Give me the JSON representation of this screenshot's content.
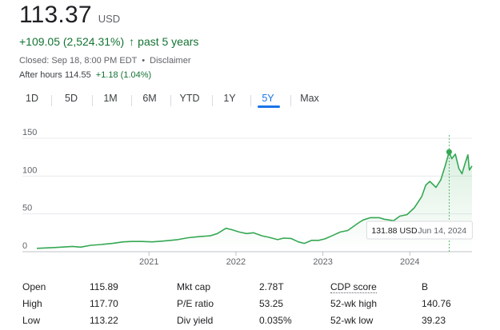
{
  "quote": {
    "price": "113.37",
    "currency": "USD",
    "change": "+109.05 (2,524.31%)",
    "change_arrow": "↑",
    "change_period": "past 5 years",
    "closed_text": "Closed: Sep 18, 8:00 PM EDT",
    "separator": "•",
    "disclaimer": "Disclaimer",
    "after_hours_label": "After hours",
    "after_hours_price": "114.55",
    "after_hours_change": "+1.18 (1.04%)"
  },
  "range_tabs": {
    "items": [
      "1D",
      "5D",
      "1M",
      "6M",
      "YTD",
      "1Y",
      "5Y",
      "Max"
    ],
    "active_index": 6
  },
  "colors": {
    "line": "#34a853",
    "fill": "#e6f4ea",
    "grid": "#e8eaed",
    "accent": "#1a73e8",
    "positive": "#137333"
  },
  "chart_data": {
    "type": "area",
    "title": "",
    "xlabel": "",
    "ylabel": "",
    "ylim": [
      0,
      150
    ],
    "yticks": [
      0,
      50,
      100,
      150
    ],
    "xtick_labels": [
      "2021",
      "2022",
      "2023",
      "2024"
    ],
    "grid": true,
    "x_start": "2019-09-18",
    "x_end": "2024-09-18",
    "tooltip": {
      "value_label": "131.88 USD",
      "date_label": "Jun 14, 2024",
      "date": "2024-06-14",
      "value": 131.88
    },
    "series": [
      {
        "x": [
          "2019-09-18",
          "2019-12-01",
          "2020-02-15",
          "2020-03-20",
          "2020-05-01",
          "2020-06-15",
          "2020-08-01",
          "2020-09-15",
          "2020-10-20",
          "2020-12-01",
          "2021-01-15",
          "2021-03-01",
          "2021-04-01",
          "2021-05-01",
          "2021-06-15",
          "2021-08-01",
          "2021-09-15",
          "2021-10-15",
          "2021-11-20",
          "2021-12-15",
          "2022-01-15",
          "2022-02-15",
          "2022-03-15",
          "2022-04-20",
          "2022-05-20",
          "2022-06-25",
          "2022-07-20",
          "2022-08-20",
          "2022-09-20",
          "2022-10-15",
          "2022-11-15",
          "2022-12-15",
          "2023-01-10",
          "2023-02-15",
          "2023-03-15",
          "2023-04-15",
          "2023-05-30",
          "2023-06-20",
          "2023-07-20",
          "2023-08-25",
          "2023-09-15",
          "2023-10-25",
          "2023-11-20",
          "2023-12-20",
          "2024-01-20",
          "2024-02-20",
          "2024-03-08",
          "2024-03-25",
          "2024-04-20",
          "2024-05-10",
          "2024-05-30",
          "2024-06-14",
          "2024-06-25",
          "2024-07-10",
          "2024-07-25",
          "2024-08-07",
          "2024-08-20",
          "2024-09-01",
          "2024-09-07",
          "2024-09-18"
        ],
        "y": [
          4.4,
          5.5,
          7,
          6,
          8.5,
          9.5,
          11,
          13,
          13.5,
          13.5,
          13,
          14,
          15,
          16,
          18.5,
          20,
          21,
          24,
          31,
          29,
          26,
          24,
          25,
          21,
          19,
          16,
          18,
          17.5,
          13,
          11,
          15,
          15,
          17,
          22,
          26,
          28,
          38,
          42,
          45,
          45,
          43,
          41,
          47,
          49,
          58,
          73,
          88,
          93,
          85,
          95,
          115,
          131.88,
          123,
          129,
          110,
          103,
          117,
          128,
          108,
          113.37
        ]
      }
    ]
  }
}
